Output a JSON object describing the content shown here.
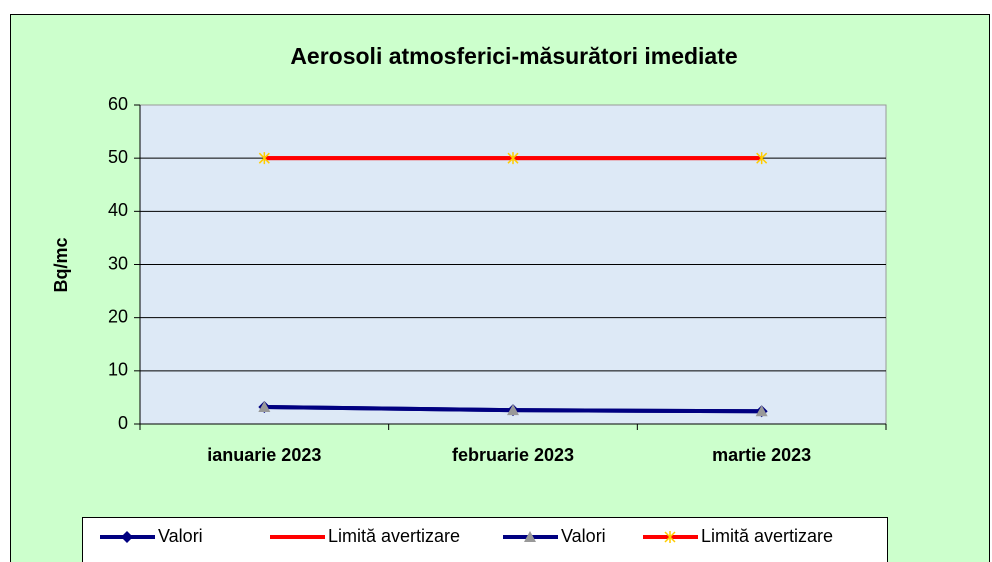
{
  "chart_data": {
    "type": "line",
    "title": "Aerosoli atmosferici-măsurători imediate",
    "y_label": "Bq/mc",
    "categories": [
      "ianuarie 2023",
      "februarie 2023",
      "martie 2023"
    ],
    "series": [
      {
        "name": "Valori",
        "color": "#000080",
        "marker": "diamond",
        "marker_color": "#000080",
        "values": [
          3.2,
          2.6,
          2.4
        ]
      },
      {
        "name": "Limită avertizare",
        "color": "#ff0000",
        "marker": "none",
        "marker_color": "#ff0000",
        "values": [
          50,
          50,
          50
        ]
      },
      {
        "name": "Valori",
        "color": "#000080",
        "marker": "triangle",
        "marker_color": "#999999",
        "values": [
          3.2,
          2.6,
          2.4
        ]
      },
      {
        "name": "Limită avertizare",
        "color": "#ff0000",
        "marker": "x",
        "marker_color": "#ffcc00",
        "values": [
          50,
          50,
          50
        ]
      }
    ],
    "ylim": [
      0,
      60
    ],
    "yticks": [
      0,
      10,
      20,
      30,
      40,
      50,
      60
    ],
    "grid": true,
    "legend": "bottom"
  }
}
